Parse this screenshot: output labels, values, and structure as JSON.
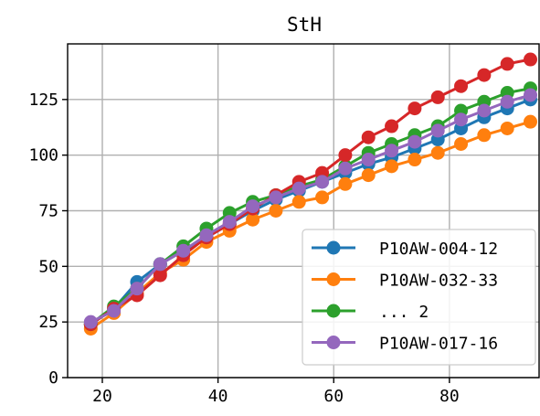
{
  "chart_data": {
    "type": "line",
    "title": "StH",
    "xlabel": "",
    "ylabel": "",
    "xlim": [
      14,
      95.5
    ],
    "ylim": [
      0,
      150
    ],
    "xticks": [
      20,
      40,
      60,
      80
    ],
    "yticks": [
      0,
      25,
      50,
      75,
      100,
      125
    ],
    "grid": true,
    "legend_placement": "lower-right",
    "x": [
      18,
      22,
      26,
      30,
      34,
      38,
      42,
      46,
      50,
      54,
      58,
      62,
      66,
      70,
      74,
      78,
      82,
      86,
      90,
      94
    ],
    "series": [
      {
        "name": "P10AW-004-12",
        "color": "#1f77b4",
        "values": [
          24,
          31,
          43,
          51,
          57,
          63,
          69,
          75,
          80,
          84,
          88,
          92,
          96,
          99,
          103,
          107,
          112,
          117,
          121,
          125
        ]
      },
      {
        "name": "P10AW-032-33",
        "color": "#ff7f0e",
        "values": [
          22,
          29,
          38,
          47,
          53,
          61,
          66,
          71,
          75,
          79,
          81,
          87,
          91,
          95,
          98,
          101,
          105,
          109,
          112,
          115
        ]
      },
      {
        "name": "... 2",
        "color": "#2ca02c",
        "values": [
          24,
          32,
          40,
          51,
          59,
          67,
          74,
          79,
          82,
          86,
          89,
          95,
          101,
          105,
          109,
          113,
          120,
          124,
          128,
          130
        ]
      },
      {
        "name": "",
        "color": "#d62728",
        "values": [
          24,
          31,
          37,
          46,
          55,
          63,
          69,
          76,
          82,
          88,
          92,
          100,
          108,
          113,
          121,
          126,
          131,
          136,
          141,
          143
        ]
      },
      {
        "name": "P10AW-017-16",
        "color": "#9467bd",
        "values": [
          25,
          30,
          40,
          51,
          57,
          64,
          70,
          77,
          81,
          85,
          88,
          94,
          98,
          102,
          106,
          111,
          116,
          120,
          124,
          127
        ]
      }
    ],
    "legend_order": [
      0,
      1,
      2,
      4
    ]
  }
}
